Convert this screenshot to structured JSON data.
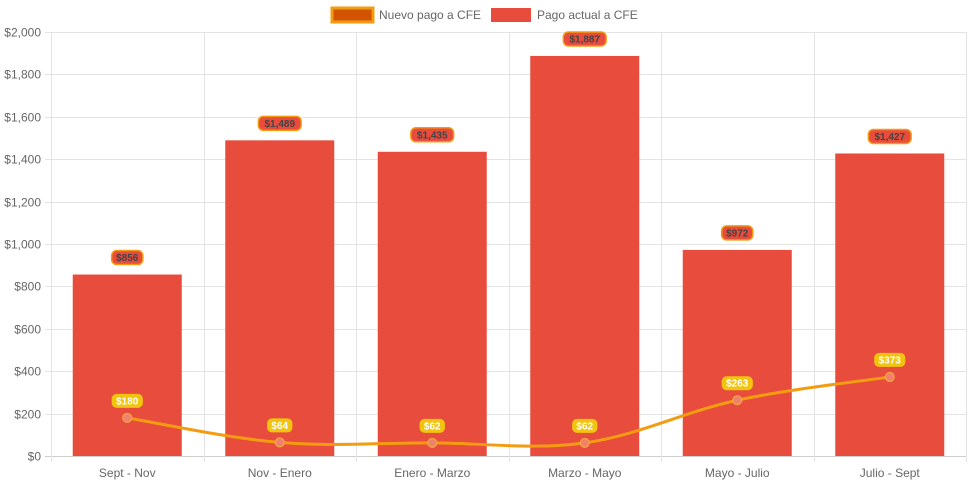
{
  "chart_data": {
    "type": "bar",
    "categories": [
      "Sept - Nov",
      "Nov - Enero",
      "Enero - Marzo",
      "Marzo - Mayo",
      "Mayo - Julio",
      "Julio - Sept"
    ],
    "ylim": [
      0,
      2000
    ],
    "y_ticks": [
      0,
      200,
      400,
      600,
      800,
      1000,
      1200,
      1400,
      1600,
      1800,
      2000
    ],
    "y_tick_labels": [
      "$0",
      "$200",
      "$400",
      "$600",
      "$800",
      "$1,000",
      "$1,200",
      "$1,400",
      "$1,600",
      "$1,800",
      "$2,000"
    ],
    "grid": true,
    "legend_position": "top-center",
    "series": [
      {
        "name": "Nuevo pago a CFE",
        "type": "line",
        "color": "#f39c12",
        "marker_color": "#f0826b",
        "label_bg": "#f1c40f",
        "values": [
          180,
          64,
          62,
          62,
          263,
          373
        ],
        "labels": [
          "$180",
          "$64",
          "$62",
          "$62",
          "$263",
          "$373"
        ]
      },
      {
        "name": "Pago actual a CFE",
        "type": "bar",
        "color": "#e74c3c",
        "label_bg": "#e74c3c",
        "label_border": "#f39c12",
        "values": [
          856,
          1489,
          1435,
          1887,
          972,
          1427
        ],
        "labels": [
          "$856",
          "$1,489",
          "$1,435",
          "$1,887",
          "$972",
          "$1,427"
        ]
      }
    ]
  }
}
